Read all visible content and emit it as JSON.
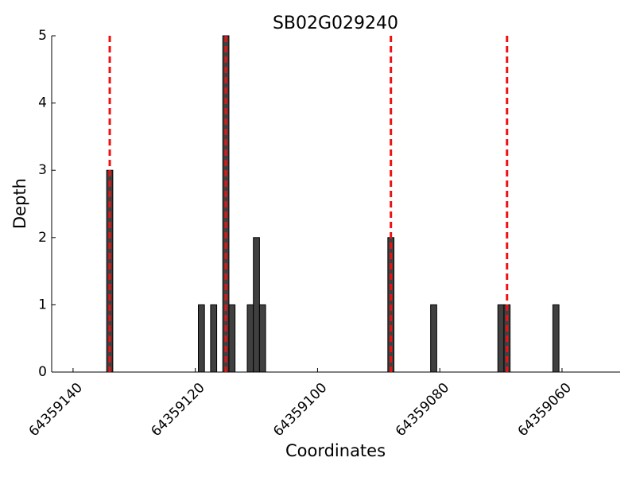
{
  "chart_data": {
    "type": "bar",
    "title": "SB02G029240",
    "x_label": "Coordinates",
    "y_label": "Depth",
    "x": [
      64359134,
      64359119,
      64359117,
      64359115,
      64359114,
      64359111,
      64359110,
      64359109,
      64359088,
      64359081,
      64359070,
      64359069,
      64359061
    ],
    "values": [
      3,
      1,
      1,
      5,
      1,
      1,
      2,
      1,
      2,
      1,
      1,
      1,
      1
    ],
    "color": "#404040",
    "xlim": [
      64359143.5,
      64359050.5
    ],
    "xticks": [
      64359140,
      64359120,
      64359100,
      64359080,
      64359060
    ],
    "ylim": [
      0,
      5
    ],
    "yticks": [
      0,
      1,
      2,
      3,
      4,
      5
    ],
    "vlines": [
      64359134,
      64359115,
      64359088,
      64359069
    ],
    "vline_color": "#ee1111",
    "grid": false
  }
}
